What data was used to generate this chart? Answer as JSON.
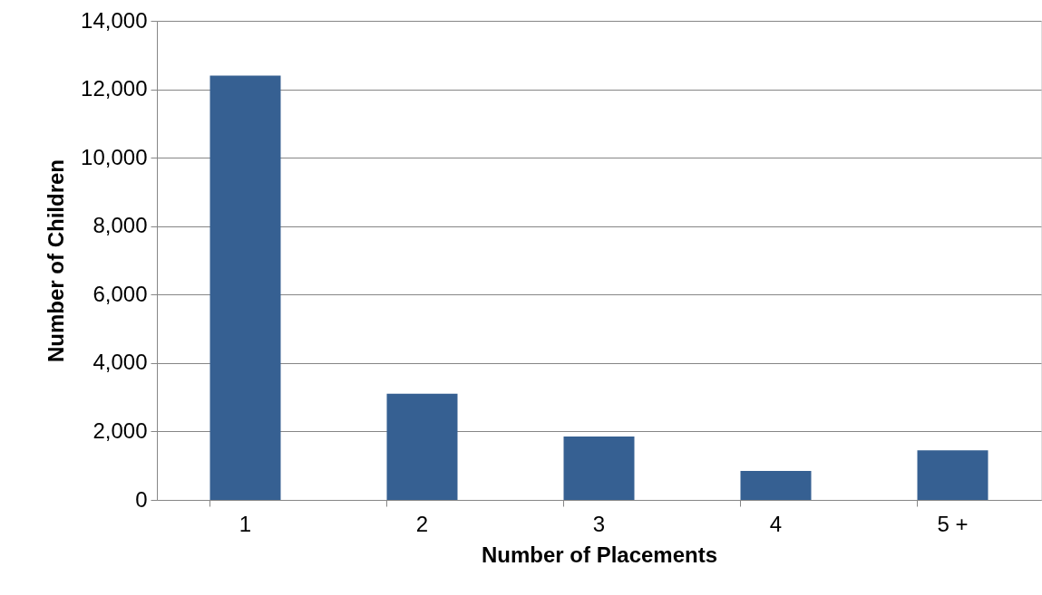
{
  "chart_data": {
    "type": "bar",
    "xlabel": "Number of Placements",
    "ylabel": "Number of Children",
    "categories": [
      "1",
      "2",
      "3",
      "4",
      "5 +"
    ],
    "values": [
      12400,
      3100,
      1850,
      850,
      1450
    ],
    "color": "#366092",
    "ylim": [
      0,
      14000
    ],
    "yticks": [
      {
        "value": 0,
        "label": "0"
      },
      {
        "value": 2000,
        "label": "2,000"
      },
      {
        "value": 4000,
        "label": "4,000"
      },
      {
        "value": 6000,
        "label": "6,000"
      },
      {
        "value": 8000,
        "label": "8,000"
      },
      {
        "value": 10000,
        "label": "10,000"
      },
      {
        "value": 12000,
        "label": "12,000"
      },
      {
        "value": 14000,
        "label": "14,000"
      }
    ],
    "grid": "y"
  }
}
